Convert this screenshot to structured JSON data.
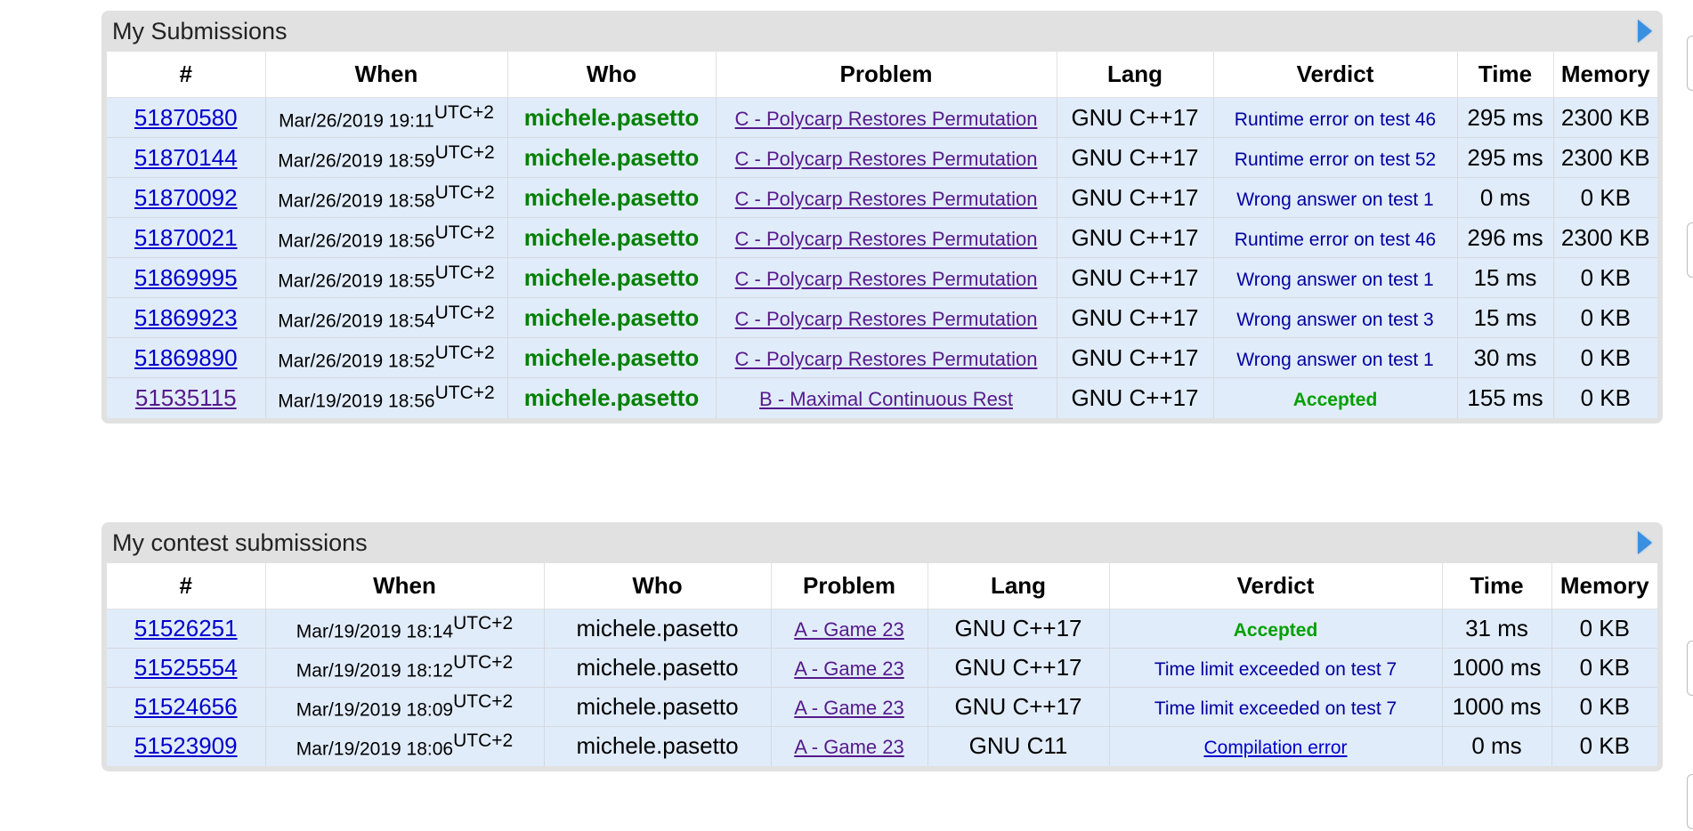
{
  "my_submissions": {
    "title": "My Submissions",
    "headers": [
      "#",
      "When",
      "Who",
      "Problem",
      "Lang",
      "Verdict",
      "Time",
      "Memory"
    ],
    "rows": [
      {
        "id": "51870580",
        "when": "Mar/26/2019 19:11",
        "tz": "UTC+2",
        "who": "michele.pasetto",
        "problem": "C - Polycarp Restores Permutation",
        "lang": "GNU C++17",
        "verdict": "Runtime error on test 46",
        "verdict_type": "blue",
        "time": "295 ms",
        "memory": "2300 KB"
      },
      {
        "id": "51870144",
        "when": "Mar/26/2019 18:59",
        "tz": "UTC+2",
        "who": "michele.pasetto",
        "problem": "C - Polycarp Restores Permutation",
        "lang": "GNU C++17",
        "verdict": "Runtime error on test 52",
        "verdict_type": "blue",
        "time": "295 ms",
        "memory": "2300 KB"
      },
      {
        "id": "51870092",
        "when": "Mar/26/2019 18:58",
        "tz": "UTC+2",
        "who": "michele.pasetto",
        "problem": "C - Polycarp Restores Permutation",
        "lang": "GNU C++17",
        "verdict": "Wrong answer on test 1",
        "verdict_type": "blue",
        "time": "0 ms",
        "memory": "0 KB"
      },
      {
        "id": "51870021",
        "when": "Mar/26/2019 18:56",
        "tz": "UTC+2",
        "who": "michele.pasetto",
        "problem": "C - Polycarp Restores Permutation",
        "lang": "GNU C++17",
        "verdict": "Runtime error on test 46",
        "verdict_type": "blue",
        "time": "296 ms",
        "memory": "2300 KB"
      },
      {
        "id": "51869995",
        "when": "Mar/26/2019 18:55",
        "tz": "UTC+2",
        "who": "michele.pasetto",
        "problem": "C - Polycarp Restores Permutation",
        "lang": "GNU C++17",
        "verdict": "Wrong answer on test 1",
        "verdict_type": "blue",
        "time": "15 ms",
        "memory": "0 KB"
      },
      {
        "id": "51869923",
        "when": "Mar/26/2019 18:54",
        "tz": "UTC+2",
        "who": "michele.pasetto",
        "problem": "C - Polycarp Restores Permutation",
        "lang": "GNU C++17",
        "verdict": "Wrong answer on test 3",
        "verdict_type": "blue",
        "time": "15 ms",
        "memory": "0 KB"
      },
      {
        "id": "51869890",
        "when": "Mar/26/2019 18:52",
        "tz": "UTC+2",
        "who": "michele.pasetto",
        "problem": "C - Polycarp Restores Permutation",
        "lang": "GNU C++17",
        "verdict": "Wrong answer on test 1",
        "verdict_type": "blue",
        "time": "30 ms",
        "memory": "0 KB"
      },
      {
        "id": "51535115",
        "when": "Mar/19/2019 18:56",
        "tz": "UTC+2",
        "who": "michele.pasetto",
        "problem": "B - Maximal Continuous Rest",
        "lang": "GNU C++17",
        "verdict": "Accepted",
        "verdict_type": "accepted",
        "time": "155 ms",
        "memory": "0 KB"
      }
    ]
  },
  "contest_submissions": {
    "title": "My contest submissions",
    "headers": [
      "#",
      "When",
      "Who",
      "Problem",
      "Lang",
      "Verdict",
      "Time",
      "Memory"
    ],
    "rows": [
      {
        "id": "51526251",
        "when": "Mar/19/2019 18:14",
        "tz": "UTC+2",
        "who": "michele.pasetto",
        "problem": "A - Game 23",
        "lang": "GNU C++17",
        "verdict": "Accepted",
        "verdict_type": "accepted",
        "time": "31 ms",
        "memory": "0 KB"
      },
      {
        "id": "51525554",
        "when": "Mar/19/2019 18:12",
        "tz": "UTC+2",
        "who": "michele.pasetto",
        "problem": "A - Game 23",
        "lang": "GNU C++17",
        "verdict": "Time limit exceeded on test 7",
        "verdict_type": "blue",
        "time": "1000 ms",
        "memory": "0 KB"
      },
      {
        "id": "51524656",
        "when": "Mar/19/2019 18:09",
        "tz": "UTC+2",
        "who": "michele.pasetto",
        "problem": "A - Game 23",
        "lang": "GNU C++17",
        "verdict": "Time limit exceeded on test 7",
        "verdict_type": "blue",
        "time": "1000 ms",
        "memory": "0 KB"
      },
      {
        "id": "51523909",
        "when": "Mar/19/2019 18:06",
        "tz": "UTC+2",
        "who": "michele.pasetto",
        "problem": "A - Game 23",
        "lang": "GNU C11",
        "verdict": "Compilation error",
        "verdict_type": "link",
        "time": "0 ms",
        "memory": "0 KB"
      }
    ]
  },
  "icons": {
    "expand": "expand-arrow-icon"
  },
  "colors": {
    "row_bg": "#e1ecfa",
    "box_bg": "#e1e1e1",
    "who_green": "#008000",
    "accepted_green": "#00a000",
    "verdict_blue": "#0000a0",
    "link_blue": "#0000cc",
    "visited_purple": "#551a8b"
  }
}
